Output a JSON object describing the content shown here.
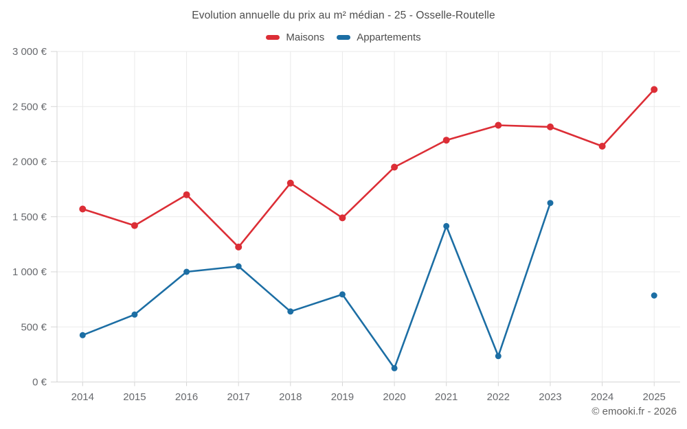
{
  "title": "Evolution annuelle du prix au m² médian - 25 - Osselle-Routelle",
  "footer_credit": "© emooki.fr - 2026",
  "legend": {
    "items": [
      {
        "label": "Maisons",
        "color": "#dc2e36"
      },
      {
        "label": "Appartements",
        "color": "#1c6ea4"
      }
    ]
  },
  "chart_data": {
    "type": "line",
    "title": "Evolution annuelle du prix au m² médian - 25 - Osselle-Routelle",
    "x": [
      "2014",
      "2015",
      "2016",
      "2017",
      "2018",
      "2019",
      "2020",
      "2021",
      "2022",
      "2023",
      "2024",
      "2025"
    ],
    "series": [
      {
        "name": "Maisons",
        "color": "#dc2e36",
        "values": [
          1570,
          1420,
          1700,
          1225,
          1805,
          1490,
          1950,
          2195,
          2330,
          2315,
          2140,
          2655
        ]
      },
      {
        "name": "Appartements",
        "color": "#1c6ea4",
        "values": [
          425,
          612,
          1000,
          1050,
          640,
          795,
          125,
          1415,
          235,
          1625,
          null,
          785
        ]
      }
    ],
    "ylim": [
      0,
      3000
    ],
    "ytick_step": 500,
    "ytick_labels": [
      "0 €",
      "500 €",
      "1 000 €",
      "1 500 €",
      "2 000 €",
      "2 500 €",
      "3 000 €"
    ],
    "xlabel": "",
    "ylabel": "",
    "grid": true,
    "legend_position": "top",
    "note": "Appartements has no 2024 value; 2025 point is isolated"
  }
}
